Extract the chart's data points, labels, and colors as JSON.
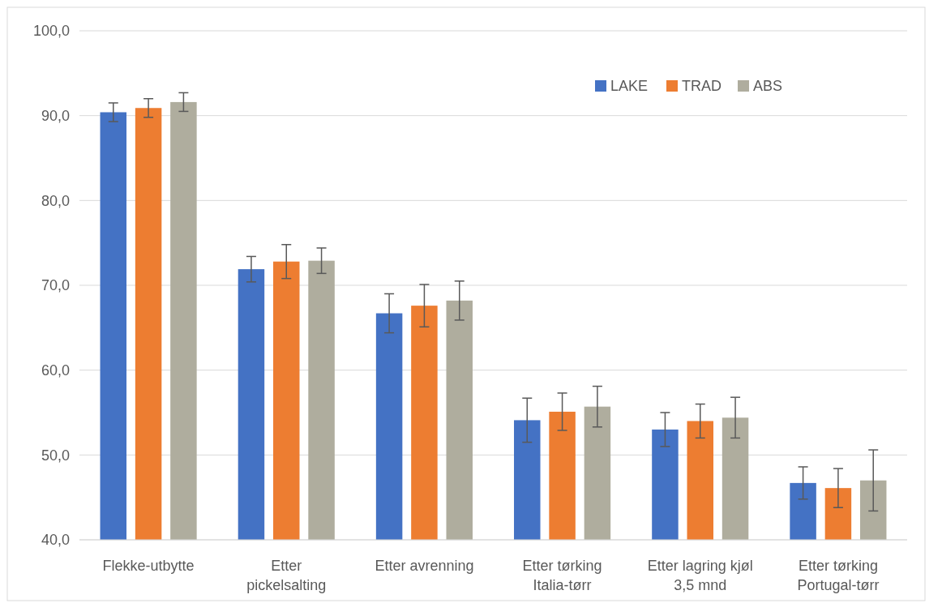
{
  "chart_data": {
    "type": "bar",
    "categories": [
      "Flekke-utbytte",
      "Etter pickelsalting",
      "Etter avrenning",
      "Etter tørking Italia-tørr",
      "Etter lagring kjøl 3,5 mnd",
      "Etter tørking Portugal-tørr"
    ],
    "series": [
      {
        "name": "LAKE",
        "color": "#4472c4",
        "values": [
          90.4,
          71.9,
          66.7,
          54.1,
          53.0,
          46.7
        ],
        "errors": [
          1.1,
          1.5,
          2.3,
          2.6,
          2.0,
          1.9
        ]
      },
      {
        "name": "TRAD",
        "color": "#ed7d31",
        "values": [
          90.9,
          72.8,
          67.6,
          55.1,
          54.0,
          46.1
        ],
        "errors": [
          1.1,
          2.0,
          2.5,
          2.2,
          2.0,
          2.3
        ]
      },
      {
        "name": "ABS",
        "color": "#afad9e",
        "values": [
          91.6,
          72.9,
          68.2,
          55.7,
          54.4,
          47.0
        ],
        "errors": [
          1.1,
          1.5,
          2.3,
          2.4,
          2.4,
          3.6
        ]
      }
    ],
    "ylim": [
      40,
      100
    ],
    "yticks": [
      {
        "value": 40,
        "label": "40,0"
      },
      {
        "value": 50,
        "label": "50,0"
      },
      {
        "value": 60,
        "label": "60,0"
      },
      {
        "value": 70,
        "label": "70,0"
      },
      {
        "value": 80,
        "label": "80,0"
      },
      {
        "value": 90,
        "label": "90,0"
      },
      {
        "value": 100,
        "label": "100,0"
      }
    ],
    "grid": "y",
    "legend": "top right"
  }
}
